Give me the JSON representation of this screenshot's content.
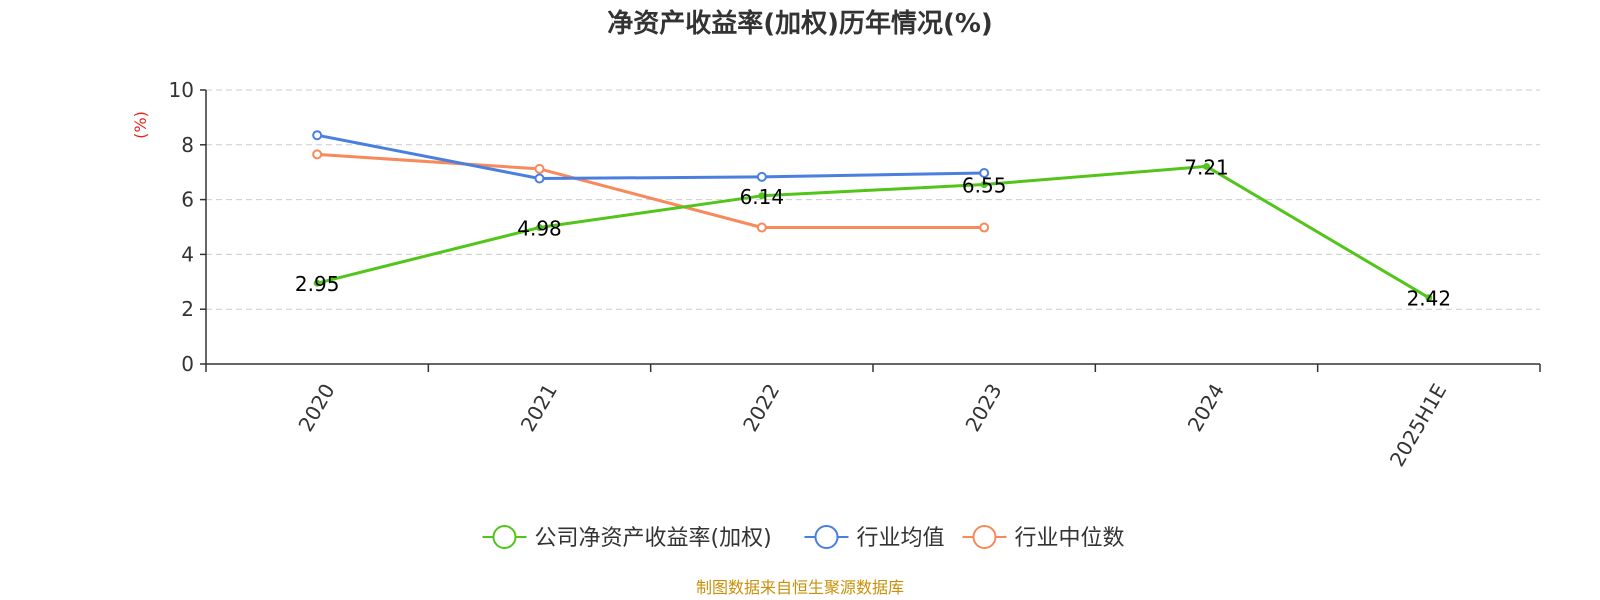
{
  "chart_data": {
    "type": "line",
    "title": "净资产收益率(加权)历年情况(%)",
    "ylabel": "(%)",
    "xlabel": "",
    "categories": [
      "2020",
      "2021",
      "2022",
      "2023",
      "2024",
      "2025H1E"
    ],
    "ylim": [
      0,
      10
    ],
    "yticks": [
      0,
      2,
      4,
      6,
      8,
      10
    ],
    "grid": true,
    "legend_position": "bottom",
    "series": [
      {
        "name": "公司净资产收益率(加权)",
        "color": "#52c41a",
        "values": [
          2.95,
          4.98,
          6.14,
          6.55,
          7.21,
          2.42
        ],
        "data_labels": [
          "2.95",
          "4.98",
          "6.14",
          "6.55",
          "7.21",
          "2.42"
        ]
      },
      {
        "name": "行业均值",
        "color": "#4a7fe0",
        "values": [
          8.35,
          6.77,
          6.83,
          6.97,
          null,
          null
        ]
      },
      {
        "name": "行业中位数",
        "color": "#f7895a",
        "values": [
          7.65,
          7.12,
          4.98,
          4.98,
          null,
          null
        ]
      }
    ]
  },
  "colors": {
    "axis": "#333333",
    "grid": "#cccccc",
    "ylabel": "#e8251a",
    "source": "#c8900a"
  },
  "source_note": "制图数据来自恒生聚源数据库"
}
